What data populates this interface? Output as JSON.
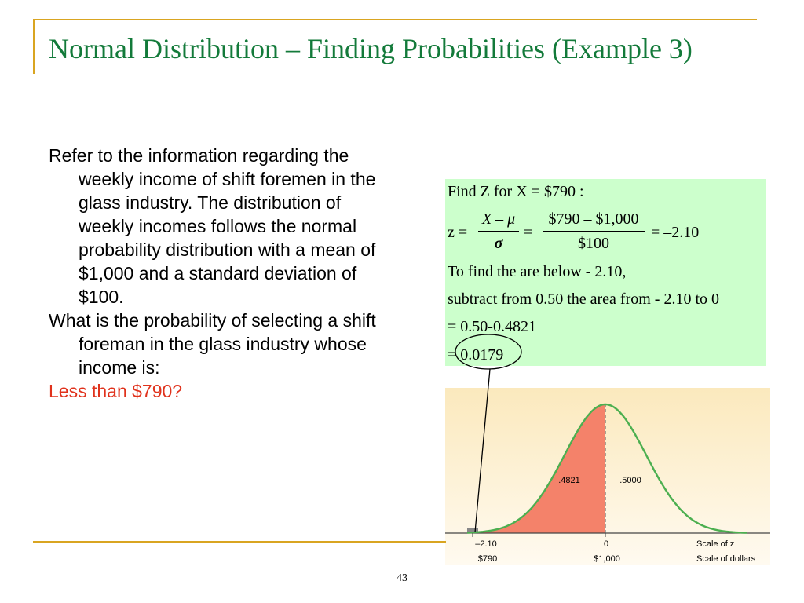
{
  "slide": {
    "title": "Normal Distribution – Finding Probabilities (Example 3)",
    "paragraphs": [
      "Refer to the information regarding the weekly income of shift foremen in the glass industry. The distribution of weekly incomes follows the normal probability distribution with a mean of $1,000 and a standard deviation of $100.",
      "What is the probability of selecting a shift foreman in the glass industry whose income is:",
      "Less than $790?"
    ],
    "page_number": "43"
  },
  "formula": {
    "line1": "Find  Z for X = $790 :",
    "z_prefix": "z =",
    "frac1_num": "X – μ",
    "frac1_den": "σ",
    "equals": "=",
    "frac2_num": "$790 – $1,000",
    "frac2_den": "$100",
    "result": "= –2.10",
    "line3": "To find the are below - 2.10,",
    "line4": "subtract from  0.50 the area from  - 2.10 to 0",
    "line5": "= 0.50-0.4821",
    "line6": "= 0.0179"
  },
  "figure": {
    "area_left_label": ".4821",
    "area_right_label": ".5000",
    "z_tick": "–2.10",
    "dollar_tick": "$790",
    "z_center": "0",
    "dollar_center": "$1,000",
    "z_scale_label": "Scale of z",
    "dollar_scale_label": "Scale of dollars",
    "colors": {
      "background_top": "#fbe9bd",
      "background_bottom": "#fffaf0",
      "shaded_area": "#f4826a",
      "tail_area": "#888888",
      "curve": "#4caf50"
    }
  },
  "colors": {
    "title": "#137a3a",
    "accent_rule": "#d9a521",
    "highlight_text": "#e0321c",
    "formula_background": "#ccffcc"
  }
}
